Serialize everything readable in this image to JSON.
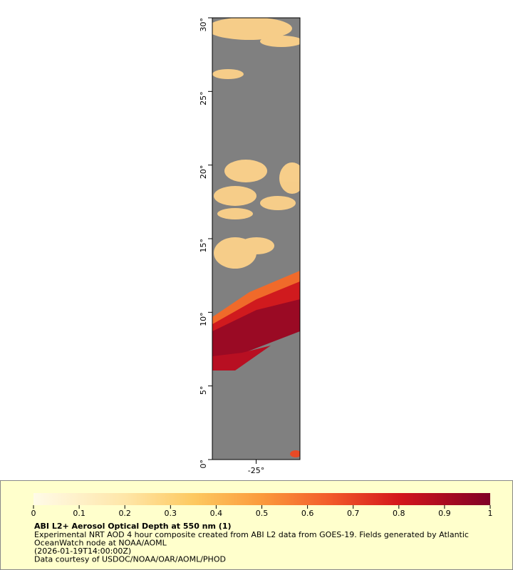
{
  "map": {
    "lat_range": [
      0,
      30
    ],
    "lon_range": [
      -28,
      -22
    ],
    "lat_ticks": [
      {
        "value": 0,
        "label": "0°"
      },
      {
        "value": 5,
        "label": "5°"
      },
      {
        "value": 10,
        "label": "10°"
      },
      {
        "value": 15,
        "label": "15°"
      },
      {
        "value": 20,
        "label": "20°"
      },
      {
        "value": 25,
        "label": "25°"
      },
      {
        "value": 30,
        "label": "30°"
      }
    ],
    "lon_ticks": [
      {
        "value": -25,
        "label": "-25°"
      }
    ]
  },
  "colorbar": {
    "range": [
      0,
      1
    ],
    "ticks": [
      0,
      0.1,
      0.2,
      0.3,
      0.4,
      0.5,
      0.6,
      0.7,
      0.8,
      0.9,
      1
    ]
  },
  "legend": {
    "title": "ABI L2+ Aerosol Optical Depth at 550 nm (1)",
    "lines": [
      "Experimental NRT AOD 4 hour composite created from ABI L2 data from GOES-19. Fields generated by Atlantic",
      "OceanWatch node at NOAA/AOML",
      "(2026-01-19T14:00:00Z)",
      "Data courtesy of USDOC/NOAA/OAR/AOML/PHOD"
    ]
  }
}
